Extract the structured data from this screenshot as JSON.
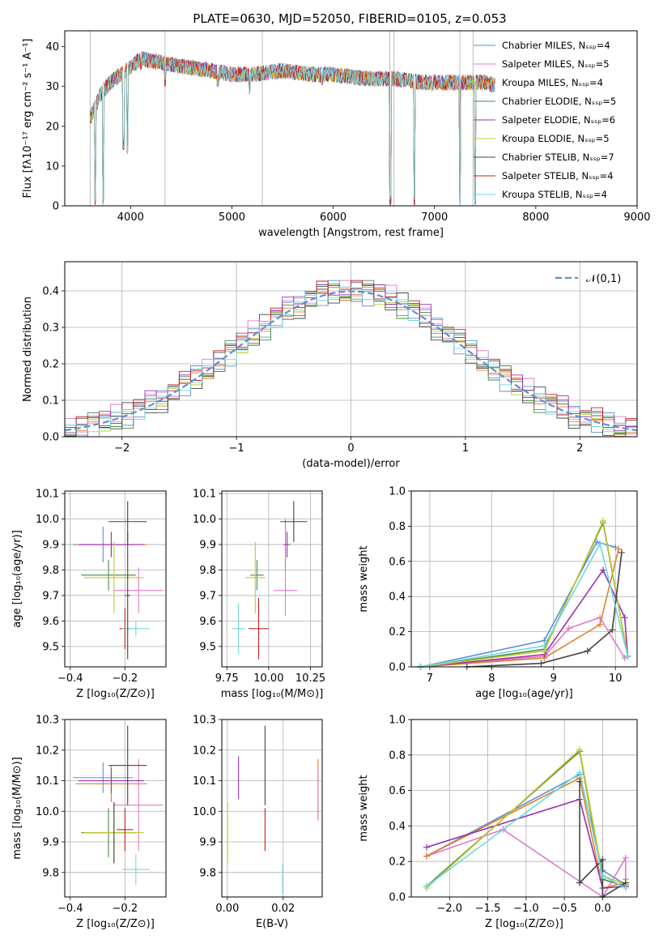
{
  "colors": [
    "#5b8fd6",
    "#e07ac8",
    "#e0802e",
    "#4a8a4a",
    "#9b30b0",
    "#c8c82a",
    "#444444",
    "#c02020",
    "#70d8e0"
  ],
  "chart_data": [
    {
      "id": "spectrum",
      "type": "line",
      "title": "PLATE=0630, MJD=52050, FIBERID=0105, z=0.053",
      "xlabel": "wavelength [Angstrom, rest frame]",
      "ylabel": "Flux [fλ10⁻¹⁷ erg cm⁻² s⁻¹ A⁻¹]",
      "xlim": [
        3350,
        9000
      ],
      "ylim": [
        0,
        44
      ],
      "xticks": [
        "4000",
        "5000",
        "6000",
        "7000",
        "8000",
        "9000"
      ],
      "xtick_values": [
        4000,
        5000,
        6000,
        7000,
        8000,
        9000
      ],
      "yticks": [
        "0",
        "10",
        "20",
        "30",
        "40"
      ],
      "ytick_values": [
        0,
        10,
        20,
        30,
        40
      ],
      "legend_loc": "upper right",
      "series": [
        {
          "name": "Chabrier MILES, Nₛₛₚ=4"
        },
        {
          "name": "Salpeter MILES, Nₛₛₚ=5"
        },
        {
          "name": "Kroupa MILES, Nₛₛₚ=4"
        },
        {
          "name": "Chabrier ELODIE, Nₛₛₚ=5"
        },
        {
          "name": "Salpeter ELODIE, Nₛₛₚ=6"
        },
        {
          "name": "Kroupa ELODIE, Nₛₛₚ=5"
        },
        {
          "name": "Chabrier STELIB, Nₛₛₚ=7"
        },
        {
          "name": "Salpeter STELIB, Nₛₛₚ=4"
        },
        {
          "name": "Kroupa STELIB, Nₛₛₚ=4"
        }
      ],
      "continuum": {
        "x": [
          3600,
          3700,
          3800,
          3900,
          4000,
          4100,
          4300,
          4500,
          4800,
          5000,
          5200,
          5500,
          5800,
          6000,
          6300,
          6600,
          6900,
          7200,
          7500,
          7800,
          8100,
          8400,
          8700,
          9000
        ],
        "y": [
          22,
          28,
          31,
          33,
          35,
          37,
          36,
          35,
          34,
          33,
          33,
          34,
          33,
          33,
          32,
          32,
          31,
          31,
          31,
          29,
          28,
          27,
          26,
          25
        ]
      },
      "dips": [
        [
          3650,
          0
        ],
        [
          3730,
          0
        ],
        [
          3930,
          14
        ],
        [
          3970,
          13
        ],
        [
          4100,
          34
        ],
        [
          4340,
          30
        ],
        [
          4860,
          30
        ],
        [
          5175,
          28
        ],
        [
          5890,
          30
        ],
        [
          6563,
          0
        ],
        [
          6800,
          0
        ],
        [
          7250,
          0
        ],
        [
          7400,
          0
        ]
      ]
    },
    {
      "id": "residuals",
      "type": "line",
      "xlabel": "(data-model)/error",
      "ylabel": "Normed distribution",
      "xlim": [
        -2.5,
        2.5
      ],
      "ylim": [
        0,
        0.48
      ],
      "xticks": [
        "−2",
        "−1",
        "0",
        "1",
        "2"
      ],
      "xtick_values": [
        -2,
        -1,
        0,
        1,
        2
      ],
      "yticks": [
        "0.0",
        "0.1",
        "0.2",
        "0.3",
        "0.4"
      ],
      "ytick_values": [
        0,
        0.1,
        0.2,
        0.3,
        0.4
      ],
      "legend": "𝒩(0,1)",
      "legend_loc": "upper right",
      "bin_width": 0.1,
      "noise": [
        0.012,
        -0.008,
        0.015,
        -0.014,
        0.006,
        0.02,
        -0.018,
        0.01,
        -0.006,
        0.017,
        -0.012,
        0.004
      ]
    },
    {
      "id": "age-vs-z",
      "type": "scatter",
      "xlabel": "Z [log₁₀(Z/Z⊙)]",
      "ylabel": "age  [log₁₀(age/yr)]",
      "xlim": [
        -0.42,
        -0.05
      ],
      "ylim": [
        9.42,
        10.11
      ],
      "xticks": [
        "−0.4",
        "−0.2"
      ],
      "xtick_values": [
        -0.4,
        -0.2
      ],
      "yticks": [
        "9.5",
        "9.6",
        "9.7",
        "9.8",
        "9.9",
        "10.0",
        "10.1"
      ],
      "ytick_values": [
        9.5,
        9.6,
        9.7,
        9.8,
        9.9,
        10.0,
        10.1
      ],
      "points": [
        {
          "c": 0,
          "x": -0.28,
          "y": 9.9,
          "xe": 0.11,
          "ye": 0.07
        },
        {
          "c": 1,
          "x": -0.15,
          "y": 9.72,
          "xe": 0.09,
          "ye": 0.09
        },
        {
          "c": 2,
          "x": -0.25,
          "y": 9.9,
          "xe": 0.13,
          "ye": 0.04
        },
        {
          "c": 3,
          "x": -0.26,
          "y": 9.78,
          "xe": 0.1,
          "ye": 0.06
        },
        {
          "c": 4,
          "x": -0.25,
          "y": 9.9,
          "xe": 0.12,
          "ye": 0.05
        },
        {
          "c": 5,
          "x": -0.24,
          "y": 9.77,
          "xe": 0.11,
          "ye": 0.14
        },
        {
          "c": 6,
          "x": -0.19,
          "y": 9.99,
          "xe": 0.07,
          "ye": 0.08
        },
        {
          "c": 7,
          "x": -0.2,
          "y": 9.57,
          "xe": 0.02,
          "ye": 0.08
        },
        {
          "c": 8,
          "x": -0.16,
          "y": 9.57,
          "xe": 0.05,
          "ye": 0.03
        },
        {
          "c": 6,
          "x": -0.19,
          "y": 9.7,
          "xe": 0.01,
          "ye": 0.25
        }
      ]
    },
    {
      "id": "age-vs-mass",
      "type": "scatter",
      "xlabel": "mass [log₁₀(M/M⊙)]",
      "xlim": [
        9.72,
        10.32
      ],
      "ylim": [
        9.42,
        10.11
      ],
      "xticks": [
        "9.75",
        "10.00",
        "10.25"
      ],
      "xtick_values": [
        9.75,
        10.0,
        10.25
      ],
      "yticks": [
        "9.5",
        "9.6",
        "9.7",
        "9.8",
        "9.9",
        "10.0",
        "10.1"
      ],
      "ytick_values": [
        9.5,
        9.6,
        9.7,
        9.8,
        9.9,
        10.0,
        10.1
      ],
      "points": [
        {
          "c": 0,
          "x": 10.1,
          "y": 9.9,
          "xe": 0.01,
          "ye": 0.07
        },
        {
          "c": 1,
          "x": 10.1,
          "y": 9.72,
          "xe": 0.07,
          "ye": 0.1
        },
        {
          "c": 2,
          "x": 10.1,
          "y": 9.9,
          "xe": 0.01,
          "ye": 0.1
        },
        {
          "c": 3,
          "x": 9.93,
          "y": 9.78,
          "xe": 0.04,
          "ye": 0.06
        },
        {
          "c": 4,
          "x": 10.11,
          "y": 9.9,
          "xe": 0.02,
          "ye": 0.05
        },
        {
          "c": 5,
          "x": 9.92,
          "y": 9.77,
          "xe": 0.06,
          "ye": 0.14
        },
        {
          "c": 6,
          "x": 10.15,
          "y": 9.99,
          "xe": 0.08,
          "ye": 0.08
        },
        {
          "c": 7,
          "x": 9.94,
          "y": 9.57,
          "xe": 0.06,
          "ye": 0.12
        },
        {
          "c": 8,
          "x": 9.82,
          "y": 9.57,
          "xe": 0.04,
          "ye": 0.1
        }
      ]
    },
    {
      "id": "weight-vs-age",
      "type": "line",
      "xlabel": "age  [log₁₀(age/yr)]",
      "ylabel": "mass weight",
      "xlim": [
        6.7,
        10.35
      ],
      "ylim": [
        0,
        1
      ],
      "xticks": [
        "7",
        "8",
        "9",
        "10"
      ],
      "xtick_values": [
        7,
        8,
        9,
        10
      ],
      "yticks": [
        "0.0",
        "0.2",
        "0.4",
        "0.6",
        "0.8",
        "1.0"
      ],
      "ytick_values": [
        0,
        0.2,
        0.4,
        0.6,
        0.8,
        1.0
      ],
      "series": [
        {
          "c": 0,
          "x": [
            6.85,
            8.85,
            9.7,
            10.0
          ],
          "y": [
            0.0,
            0.15,
            0.71,
            0.68
          ]
        },
        {
          "c": 1,
          "x": [
            6.85,
            8.85,
            9.25,
            9.75,
            10.15
          ],
          "y": [
            0.0,
            0.06,
            0.22,
            0.28,
            0.05
          ]
        },
        {
          "c": 2,
          "x": [
            6.85,
            8.85,
            9.75,
            10.05
          ],
          "y": [
            0.0,
            0.05,
            0.24,
            0.67
          ]
        },
        {
          "c": 3,
          "x": [
            6.85,
            8.85,
            9.8,
            10.2
          ],
          "y": [
            0.0,
            0.1,
            0.82,
            0.06
          ]
        },
        {
          "c": 4,
          "x": [
            6.85,
            8.85,
            9.8,
            10.15,
            10.2
          ],
          "y": [
            0.0,
            0.07,
            0.55,
            0.28,
            0.06
          ]
        },
        {
          "c": 5,
          "x": [
            6.85,
            8.85,
            9.8,
            10.2
          ],
          "y": [
            0.0,
            0.09,
            0.83,
            0.06
          ]
        },
        {
          "c": 6,
          "x": [
            7.6,
            8.8,
            9.55,
            9.95,
            10.1
          ],
          "y": [
            0.0,
            0.02,
            0.09,
            0.21,
            0.65
          ]
        },
        {
          "c": 8,
          "x": [
            6.85,
            8.85,
            9.75,
            10.2
          ],
          "y": [
            0.0,
            0.12,
            0.7,
            0.06
          ]
        }
      ]
    },
    {
      "id": "mass-vs-z",
      "type": "scatter",
      "xlabel": "Z [log₁₀(Z/Z⊙)]",
      "ylabel": "mass [log₁₀(M/M⊙)]",
      "xlim": [
        -0.42,
        -0.05
      ],
      "ylim": [
        9.72,
        10.3
      ],
      "xticks": [
        "−0.4",
        "−0.2"
      ],
      "xtick_values": [
        -0.4,
        -0.2
      ],
      "yticks": [
        "9.8",
        "9.9",
        "10.0",
        "10.1",
        "10.2",
        "10.3"
      ],
      "ytick_values": [
        9.8,
        9.9,
        10.0,
        10.1,
        10.2,
        10.3
      ],
      "points": [
        {
          "c": 0,
          "x": -0.28,
          "y": 10.11,
          "xe": 0.11,
          "ye": 0.05
        },
        {
          "c": 1,
          "x": -0.15,
          "y": 10.02,
          "xe": 0.09,
          "ye": 0.15
        },
        {
          "c": 2,
          "x": -0.25,
          "y": 10.09,
          "xe": 0.13,
          "ye": 0.06
        },
        {
          "c": 3,
          "x": -0.26,
          "y": 9.93,
          "xe": 0.1,
          "ye": 0.08
        },
        {
          "c": 4,
          "x": -0.25,
          "y": 10.1,
          "xe": 0.12,
          "ye": 0.04
        },
        {
          "c": 5,
          "x": -0.24,
          "y": 9.93,
          "xe": 0.11,
          "ye": 0.1
        },
        {
          "c": 6,
          "x": -0.19,
          "y": 10.15,
          "xe": 0.07,
          "ye": 0.13
        },
        {
          "c": 7,
          "x": -0.2,
          "y": 9.94,
          "xe": 0.03,
          "ye": 0.07
        },
        {
          "c": 8,
          "x": -0.16,
          "y": 9.81,
          "xe": 0.05,
          "ye": 0.05
        },
        {
          "c": 6,
          "x": -0.24,
          "y": 9.93,
          "xe": 0.0,
          "ye": 0.1
        }
      ]
    },
    {
      "id": "mass-vs-ebv",
      "type": "scatter",
      "xlabel": "E(B-V)",
      "xlim": [
        -0.002,
        0.034
      ],
      "ylim": [
        9.72,
        10.3
      ],
      "xticks": [
        "0.00",
        "0.02"
      ],
      "xtick_values": [
        0,
        0.02
      ],
      "yticks": [
        "9.8",
        "9.9",
        "10.0",
        "10.1",
        "10.2",
        "10.3"
      ],
      "ytick_values": [
        9.8,
        9.9,
        10.0,
        10.1,
        10.2,
        10.3
      ],
      "points": [
        {
          "c": 4,
          "x": 0.004,
          "y": 10.11,
          "xe": 0,
          "ye": 0.07
        },
        {
          "c": 6,
          "x": 0.0135,
          "y": 10.15,
          "xe": 0,
          "ye": 0.13
        },
        {
          "c": 7,
          "x": 0.0135,
          "y": 9.94,
          "xe": 0,
          "ye": 0.07
        },
        {
          "c": 5,
          "x": 0.0001,
          "y": 9.93,
          "xe": 0,
          "ye": 0.1
        },
        {
          "c": 8,
          "x": 0.0198,
          "y": 9.78,
          "xe": 0,
          "ye": 0.05
        },
        {
          "c": 2,
          "x": 0.0325,
          "y": 10.07,
          "xe": 0,
          "ye": 0.1
        },
        {
          "c": 1,
          "x": 0.0325,
          "y": 10.06,
          "xe": 0,
          "ye": 0.08
        }
      ]
    },
    {
      "id": "weight-vs-z",
      "type": "line",
      "xlabel": "Z [log₁₀(Z/Z⊙)]",
      "ylabel": "mass weight",
      "xlim": [
        -2.5,
        0.45
      ],
      "ylim": [
        0,
        1
      ],
      "xticks": [
        "−2.0",
        "−1.5",
        "−1.0",
        "−0.5",
        "0.0"
      ],
      "xtick_values": [
        -2,
        -1.5,
        -1,
        -0.5,
        0
      ],
      "yticks": [
        "0.0",
        "0.2",
        "0.4",
        "0.6",
        "0.8",
        "1.0"
      ],
      "ytick_values": [
        0,
        0.2,
        0.4,
        0.6,
        0.8,
        1.0
      ],
      "series": [
        {
          "c": 0,
          "x": [
            -2.3,
            -0.3,
            0.0,
            0.3
          ],
          "y": [
            0.23,
            0.69,
            0.15,
            0.07
          ]
        },
        {
          "c": 1,
          "x": [
            -2.3,
            -1.3,
            0.0,
            0.3,
            0.3
          ],
          "y": [
            0.23,
            0.38,
            0.0,
            0.22,
            0.1
          ]
        },
        {
          "c": 2,
          "x": [
            -2.3,
            -0.3,
            0.0,
            0.3
          ],
          "y": [
            0.23,
            0.67,
            0.05,
            0.08
          ]
        },
        {
          "c": 3,
          "x": [
            -2.3,
            -0.3,
            0.0,
            0.3
          ],
          "y": [
            0.06,
            0.82,
            0.1,
            0.06
          ]
        },
        {
          "c": 4,
          "x": [
            -2.3,
            -0.3,
            0.0,
            0.3
          ],
          "y": [
            0.28,
            0.55,
            0.05,
            0.06
          ]
        },
        {
          "c": 5,
          "x": [
            -2.3,
            -0.3,
            0.0,
            0.3
          ],
          "y": [
            0.05,
            0.83,
            0.12,
            0.07
          ]
        },
        {
          "c": 6,
          "x": [
            -0.3,
            -0.3,
            0.0,
            0.0,
            0.3
          ],
          "y": [
            0.65,
            0.08,
            0.21,
            0.0,
            0.08
          ]
        },
        {
          "c": 8,
          "x": [
            -2.3,
            -0.3,
            0.0,
            0.3
          ],
          "y": [
            0.06,
            0.7,
            0.12,
            0.05
          ]
        }
      ]
    }
  ]
}
